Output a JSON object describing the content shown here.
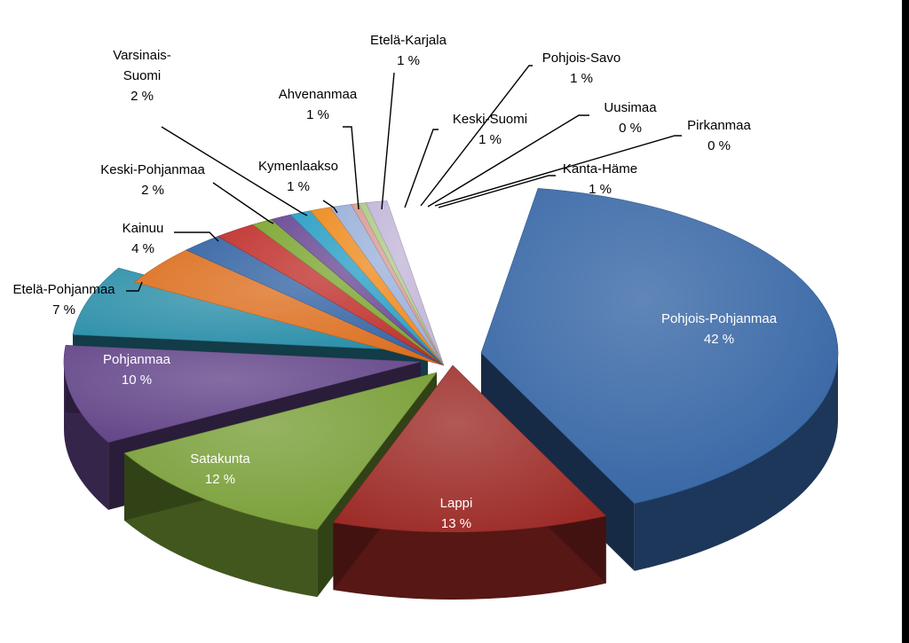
{
  "chart_data": {
    "type": "pie",
    "title": "",
    "categories": [
      "Pohjois-Pohjanmaa",
      "Lappi",
      "Satakunta",
      "Pohjanmaa",
      "Etelä-Pohjanmaa",
      "Kainuu",
      "Keski-Pohjanmaa",
      "Varsinais-Suomi",
      "Kymenlaakso",
      "Ahvenanmaa",
      "Etelä-Karjala",
      "Keski-Suomi",
      "Pohjois-Savo",
      "Uusimaa",
      "Pirkanmaa",
      "Kanta-Häme"
    ],
    "values": [
      42,
      13,
      12,
      10,
      7,
      4,
      2,
      2,
      1,
      1,
      1,
      1,
      1,
      0,
      0,
      1
    ],
    "value_labels": [
      "42 %",
      "13 %",
      "12 %",
      "10 %",
      "7 %",
      "4 %",
      "2 %",
      "2 %",
      "1 %",
      "1 %",
      "1 %",
      "1 %",
      "1 %",
      "0 %",
      "0 %",
      "1 %"
    ],
    "label_lines": [
      [
        "Pohjois-Pohjanmaa"
      ],
      [
        "Lappi"
      ],
      [
        "Satakunta"
      ],
      [
        "Pohjanmaa"
      ],
      [
        "Etelä-Pohjanmaa"
      ],
      [
        "Kainuu"
      ],
      [
        "Keski-Pohjanmaa"
      ],
      [
        "Varsinais-",
        "Suomi"
      ],
      [
        "Kymenlaakso"
      ],
      [
        "Ahvenanmaa"
      ],
      [
        "Etelä-Karjala"
      ],
      [
        "Keski-Suomi"
      ],
      [
        "Pohjois-Savo"
      ],
      [
        "Uusimaa"
      ],
      [
        "Pirkanmaa"
      ],
      [
        "Kanta-Häme"
      ]
    ],
    "colors": [
      "#3464A4",
      "#9C2A26",
      "#789E36",
      "#624488",
      "#2A8EA8",
      "#DC6E1E",
      "#3464A4",
      "#C0302C",
      "#7CA632",
      "#6A4A94",
      "#2A9EC4",
      "#EE8A1E",
      "#9AB0DA",
      "#D89C98",
      "#AECA88",
      "#C2B6D8"
    ],
    "legend": "none",
    "style": "3d-exploded"
  }
}
